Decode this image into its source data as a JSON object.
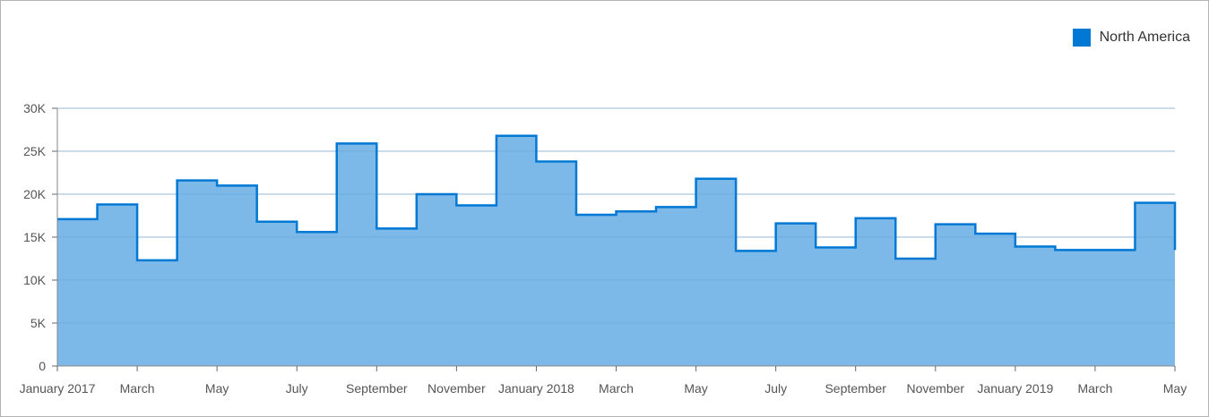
{
  "chart_data": {
    "type": "area",
    "subtype": "step",
    "x": [
      "2017-01",
      "2017-02",
      "2017-03",
      "2017-04",
      "2017-05",
      "2017-06",
      "2017-07",
      "2017-08",
      "2017-09",
      "2017-10",
      "2017-11",
      "2017-12",
      "2018-01",
      "2018-02",
      "2018-03",
      "2018-04",
      "2018-05",
      "2018-06",
      "2018-07",
      "2018-08",
      "2018-09",
      "2018-10",
      "2018-11",
      "2018-12",
      "2019-01",
      "2019-02",
      "2019-03",
      "2019-04",
      "2019-05"
    ],
    "series": [
      {
        "name": "North America",
        "color": "#0078d4",
        "values": [
          17100,
          18800,
          12300,
          21600,
          21000,
          16800,
          15600,
          25900,
          16000,
          20000,
          18700,
          26800,
          23800,
          17600,
          18000,
          18500,
          21800,
          13400,
          16600,
          13800,
          17200,
          12500,
          16500,
          15400,
          13900,
          13500,
          13500,
          19000,
          13500
        ]
      }
    ],
    "x_tick_labels": [
      "January 2017",
      "March",
      "May",
      "July",
      "September",
      "November",
      "January 2018",
      "March",
      "May",
      "July",
      "September",
      "November",
      "January 2019",
      "March",
      "May"
    ],
    "ylim": [
      0,
      30000
    ],
    "y_ticks": [
      0,
      5000,
      10000,
      15000,
      20000,
      25000,
      30000
    ],
    "y_tick_labels": [
      "0",
      "5K",
      "10K",
      "15K",
      "20K",
      "25K",
      "30K"
    ],
    "title": "",
    "xlabel": "",
    "ylabel": "",
    "grid": true,
    "legend_position": "top-right",
    "fill_color": "#7cb8e8",
    "line_color": "#0078d4"
  }
}
